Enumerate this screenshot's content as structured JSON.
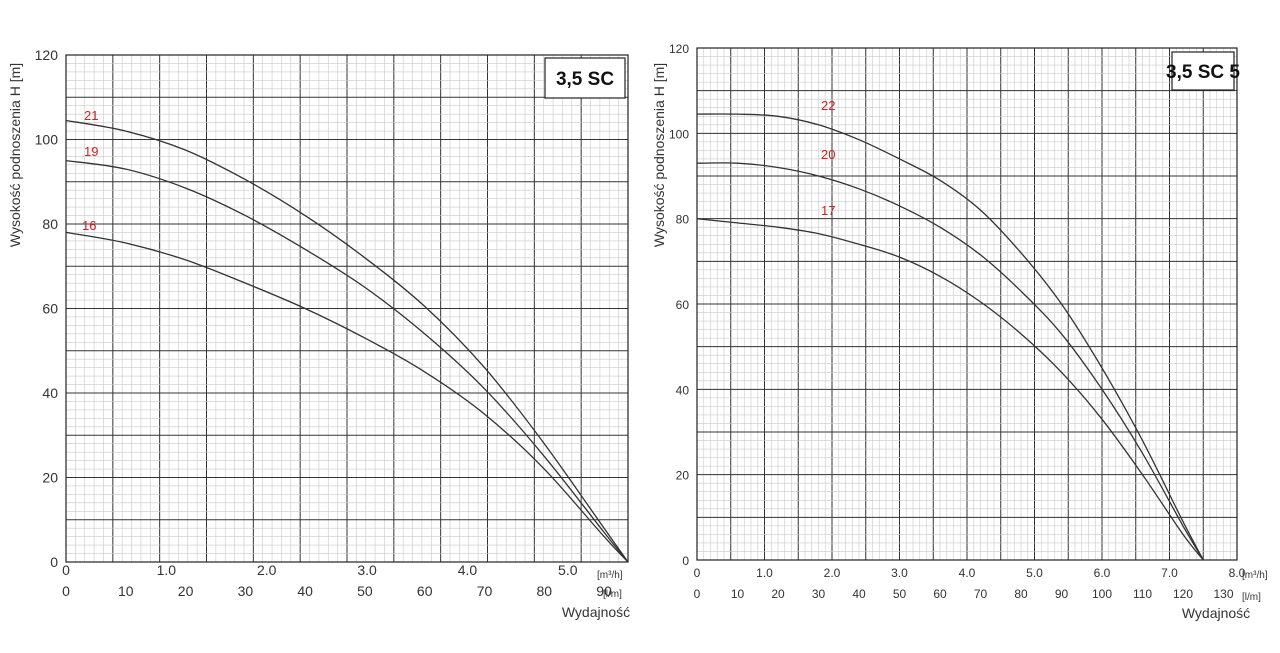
{
  "chart_data": [
    {
      "type": "line",
      "title": "3,5 SC",
      "ylabel": "Wysokość podnoszenia H [m]",
      "xlabel": "Wydajność",
      "ylim": [
        0,
        120
      ],
      "y_ticks": [
        "0",
        "20",
        "40",
        "60",
        "80",
        "100",
        "120"
      ],
      "x_primary": {
        "unit": "[m³/h]",
        "ticks": [
          "0",
          "1.0",
          "2.0",
          "3.0",
          "4.0",
          "5.0"
        ],
        "lim": [
          0,
          5.6
        ]
      },
      "x_secondary": {
        "unit": "[l/m]",
        "ticks": [
          "0",
          "10",
          "20",
          "30",
          "40",
          "50",
          "60",
          "70",
          "80",
          "90"
        ],
        "lim": [
          0,
          94
        ]
      },
      "grid": true,
      "label_color": "#cc2222",
      "series": [
        {
          "name": "21",
          "x": [
            0,
            10,
            20,
            30,
            40,
            50,
            60,
            70,
            80,
            90,
            94
          ],
          "y": [
            104.5,
            102,
            97.5,
            90.5,
            82,
            72,
            60.5,
            46,
            28,
            8,
            0
          ]
        },
        {
          "name": "19",
          "x": [
            0,
            10,
            20,
            30,
            40,
            50,
            60,
            70,
            80,
            90,
            94
          ],
          "y": [
            95,
            93,
            88.5,
            82,
            74,
            65,
            54,
            41,
            25,
            7,
            0
          ]
        },
        {
          "name": "16",
          "x": [
            0,
            10,
            20,
            30,
            40,
            50,
            60,
            70,
            80,
            90,
            94
          ],
          "y": [
            78,
            75.5,
            71.5,
            66,
            60,
            53,
            45,
            35,
            22,
            6,
            0
          ]
        }
      ]
    },
    {
      "type": "line",
      "title": "3,5 SC 5",
      "ylabel": "Wysokość podnoszenia H [m]",
      "xlabel": "Wydajność",
      "ylim": [
        0,
        120
      ],
      "y_ticks": [
        "0",
        "20",
        "40",
        "60",
        "80",
        "100",
        "120"
      ],
      "x_primary": {
        "unit": "[m³/h]",
        "ticks": [
          "0",
          "1.0",
          "2.0",
          "3.0",
          "4.0",
          "5.0",
          "6.0",
          "7.0",
          "8.0"
        ],
        "lim": [
          0,
          8
        ]
      },
      "x_secondary": {
        "unit": "[l/m]",
        "ticks": [
          "0",
          "10",
          "20",
          "30",
          "40",
          "50",
          "60",
          "70",
          "80",
          "90",
          "100",
          "110",
          "120",
          "130"
        ],
        "lim": [
          0,
          133.33
        ]
      },
      "grid": true,
      "label_color": "#cc2222",
      "series": [
        {
          "name": "22",
          "x": [
            0,
            10,
            20,
            30,
            40,
            50,
            60,
            70,
            80,
            90,
            100,
            110,
            120,
            125
          ],
          "y": [
            104.5,
            104.5,
            104,
            102,
            98.5,
            94,
            89,
            82,
            72,
            60,
            45,
            28,
            9,
            0
          ]
        },
        {
          "name": "20",
          "x": [
            0,
            10,
            20,
            30,
            40,
            50,
            60,
            70,
            80,
            90,
            100,
            110,
            120,
            125
          ],
          "y": [
            93,
            93,
            92,
            90,
            87,
            83,
            78,
            71.5,
            63,
            53,
            40,
            25,
            8,
            0
          ]
        },
        {
          "name": "17",
          "x": [
            0,
            10,
            20,
            30,
            40,
            50,
            60,
            70,
            80,
            90,
            100,
            110,
            120,
            125
          ],
          "y": [
            80,
            79,
            78,
            76.5,
            74,
            71,
            66.5,
            60.5,
            53,
            44,
            33,
            20,
            6,
            0
          ]
        }
      ]
    }
  ]
}
